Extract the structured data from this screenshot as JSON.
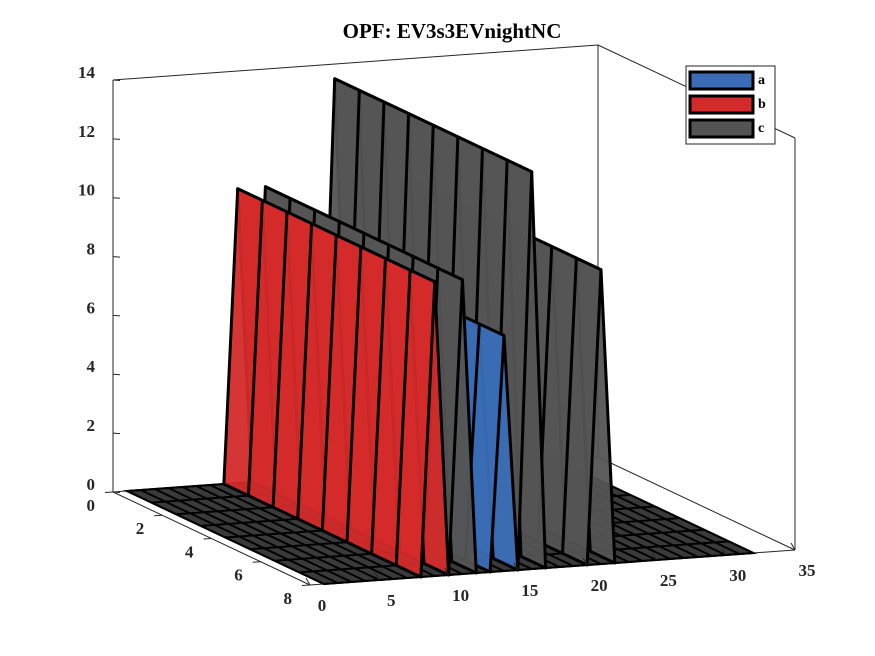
{
  "chart_data": {
    "type": "surface3d",
    "title": "OPF: EV3s3EVnightNC",
    "series": [
      {
        "name": "a",
        "color": "#3a6db5",
        "x": [
          14
        ],
        "values": [
          8
        ]
      },
      {
        "name": "b",
        "color": "#d42a2a",
        "x": [
          9
        ],
        "values": [
          10
        ]
      },
      {
        "name": "c",
        "color": "#545454",
        "x": [
          11,
          16,
          21
        ],
        "values": [
          10,
          13.5,
          10
        ]
      }
    ],
    "xlim": [
      0,
      35
    ],
    "xticks": [
      0,
      5,
      10,
      15,
      20,
      25,
      30,
      35
    ],
    "ylim": [
      0,
      8
    ],
    "yticks": [
      0,
      2,
      4,
      6,
      8
    ],
    "zlim": [
      0,
      14
    ],
    "zticks": [
      0,
      2,
      4,
      6,
      8,
      10,
      12,
      14
    ],
    "legend": "top-right"
  }
}
